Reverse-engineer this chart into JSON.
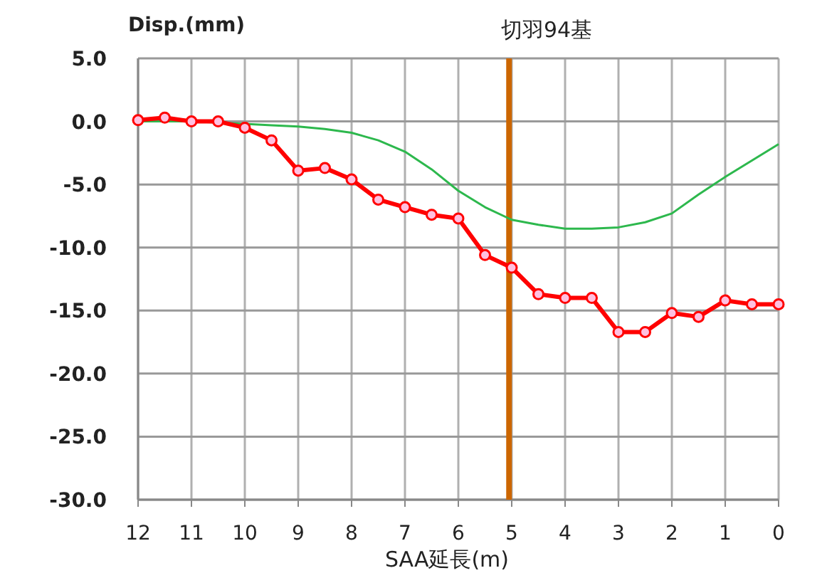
{
  "chart_data": {
    "type": "line",
    "title": "切羽94基",
    "xlabel": "SAA延長(m)",
    "ylabel": "Disp.(mm)",
    "x": [
      12,
      11.5,
      11,
      10.5,
      10,
      9.5,
      9,
      8.5,
      8,
      7.5,
      7,
      6.5,
      6,
      5.5,
      5,
      4.5,
      4,
      3.5,
      3,
      2.5,
      2,
      1.5,
      1,
      0.5,
      0
    ],
    "series": [
      {
        "color": "#2db84d",
        "marker": "none",
        "values": [
          0,
          0,
          0,
          -0.1,
          -0.2,
          -0.3,
          -0.4,
          -0.6,
          -0.9,
          -1.5,
          -2.4,
          -3.8,
          -5.5,
          -6.8,
          -7.8,
          -8.2,
          -8.5,
          -8.5,
          -8.4,
          -8.0,
          -7.3,
          -5.8,
          -4.4,
          -3.1,
          -1.8
        ]
      },
      {
        "color": "#ff0000",
        "marker": "circle",
        "values": [
          0.1,
          0.3,
          0.0,
          0.0,
          -0.5,
          -1.5,
          -3.9,
          -3.7,
          -4.6,
          -6.2,
          -6.8,
          -7.4,
          -7.7,
          -10.6,
          -11.6,
          -13.7,
          -14.0,
          -14.0,
          -16.7,
          -16.7,
          -15.2,
          -15.5,
          -14.2,
          -14.5,
          -14.5
        ]
      }
    ],
    "xlim": [
      12,
      0
    ],
    "ylim": [
      -30,
      5
    ],
    "xticks": [
      12,
      11,
      10,
      9,
      8,
      7,
      6,
      5,
      4,
      3,
      2,
      1,
      0
    ],
    "yticks": [
      {
        "value": 5,
        "label": "5.0"
      },
      {
        "value": 0,
        "label": "0.0"
      },
      {
        "value": -5,
        "label": "-5.0"
      },
      {
        "value": -10,
        "label": "-10.0"
      },
      {
        "value": -15,
        "label": "-15.0"
      },
      {
        "value": -20,
        "label": "-20.0"
      },
      {
        "value": -25,
        "label": "-25.0"
      },
      {
        "value": -30,
        "label": "-30.0"
      }
    ],
    "ref_lines": [
      {
        "axis": "x",
        "value": 5.05,
        "color": "#cc6600"
      }
    ],
    "grid": true
  }
}
